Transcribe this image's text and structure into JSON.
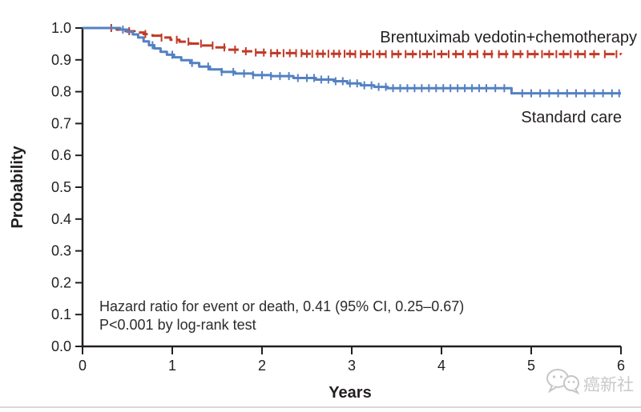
{
  "figure": {
    "watermark": {
      "text": "癌新社",
      "color": "#c9c9c9"
    },
    "divider_color": "#d8d8d8"
  },
  "chart_data": {
    "type": "line",
    "subtype": "kaplan_meier_step",
    "title": "",
    "xlabel": "Years",
    "ylabel": "Probability",
    "xlim": [
      0,
      6
    ],
    "ylim": [
      0.0,
      1.0
    ],
    "grid": false,
    "legend_position": "inline-right",
    "x_ticks": [
      0,
      1,
      2,
      3,
      4,
      5,
      6
    ],
    "y_ticks": [
      "0.0",
      "0.1",
      "0.2",
      "0.3",
      "0.4",
      "0.5",
      "0.6",
      "0.7",
      "0.8",
      "0.9",
      "1.0"
    ],
    "annotation": {
      "line1": "Hazard ratio for event or death, 0.41 (95% CI, 0.25–0.67)",
      "line2": "P<0.001 by log-rank test"
    },
    "series": [
      {
        "name": "Brentuximab vedotin+chemotherapy",
        "color": "#c03a27",
        "line_style": "dashed",
        "dash": [
          13,
          6
        ],
        "steps": [
          [
            0,
            1.0
          ],
          [
            0.3,
            1.0
          ],
          [
            0.38,
            0.995
          ],
          [
            0.48,
            0.99
          ],
          [
            0.58,
            0.986
          ],
          [
            0.68,
            0.981
          ],
          [
            0.78,
            0.976
          ],
          [
            0.88,
            0.97
          ],
          [
            0.98,
            0.963
          ],
          [
            1.08,
            0.957
          ],
          [
            1.2,
            0.951
          ],
          [
            1.33,
            0.945
          ],
          [
            1.47,
            0.939
          ],
          [
            1.6,
            0.932
          ],
          [
            1.75,
            0.927
          ],
          [
            1.92,
            0.923
          ],
          [
            2.1,
            0.921
          ],
          [
            2.45,
            0.919
          ],
          [
            3.0,
            0.918
          ],
          [
            6.0,
            0.917
          ]
        ],
        "censors": [
          0.32,
          0.52,
          0.7,
          0.88,
          1.05,
          1.18,
          1.32,
          1.45,
          1.58,
          1.7,
          1.82,
          1.93,
          2.02,
          2.1,
          2.17,
          2.24,
          2.31,
          2.38,
          2.44,
          2.5,
          2.56,
          2.62,
          2.68,
          2.74,
          2.8,
          2.86,
          2.92,
          2.98,
          3.04,
          3.1,
          3.17,
          3.24,
          3.31,
          3.38,
          3.45,
          3.52,
          3.6,
          3.68,
          3.76,
          3.84,
          3.92,
          4.0,
          4.08,
          4.16,
          4.24,
          4.32,
          4.4,
          4.48,
          4.56,
          4.64,
          4.72,
          4.8,
          4.88,
          4.96,
          5.04,
          5.12,
          5.2,
          5.28,
          5.36,
          5.44,
          5.52,
          5.6,
          5.7,
          5.82,
          5.95
        ]
      },
      {
        "name": "Standard care",
        "color": "#5381c3",
        "line_style": "solid",
        "dash": null,
        "steps": [
          [
            0,
            1.0
          ],
          [
            0.35,
            1.0
          ],
          [
            0.42,
            0.995
          ],
          [
            0.5,
            0.988
          ],
          [
            0.56,
            0.98
          ],
          [
            0.62,
            0.97
          ],
          [
            0.68,
            0.958
          ],
          [
            0.74,
            0.946
          ],
          [
            0.8,
            0.936
          ],
          [
            0.87,
            0.925
          ],
          [
            0.94,
            0.916
          ],
          [
            1.02,
            0.908
          ],
          [
            1.1,
            0.899
          ],
          [
            1.2,
            0.89
          ],
          [
            1.3,
            0.879
          ],
          [
            1.42,
            0.87
          ],
          [
            1.55,
            0.862
          ],
          [
            1.7,
            0.857
          ],
          [
            1.9,
            0.852
          ],
          [
            2.1,
            0.849
          ],
          [
            2.35,
            0.843
          ],
          [
            2.6,
            0.838
          ],
          [
            2.8,
            0.833
          ],
          [
            2.95,
            0.826
          ],
          [
            3.1,
            0.82
          ],
          [
            3.25,
            0.815
          ],
          [
            3.4,
            0.811
          ],
          [
            4.78,
            0.795
          ],
          [
            6.0,
            0.795
          ]
        ],
        "censors": [
          0.45,
          0.78,
          1.0,
          1.22,
          1.4,
          1.55,
          1.68,
          1.8,
          1.9,
          2.0,
          2.1,
          2.2,
          2.3,
          2.4,
          2.5,
          2.58,
          2.66,
          2.74,
          2.82,
          2.9,
          2.98,
          3.06,
          3.14,
          3.22,
          3.3,
          3.38,
          3.46,
          3.54,
          3.62,
          3.7,
          3.78,
          3.86,
          3.94,
          4.02,
          4.1,
          4.18,
          4.26,
          4.34,
          4.42,
          4.5,
          4.6,
          4.7,
          4.9,
          5.0,
          5.1,
          5.2,
          5.3,
          5.4,
          5.5,
          5.6,
          5.7,
          5.8,
          5.9,
          5.98
        ]
      }
    ]
  }
}
